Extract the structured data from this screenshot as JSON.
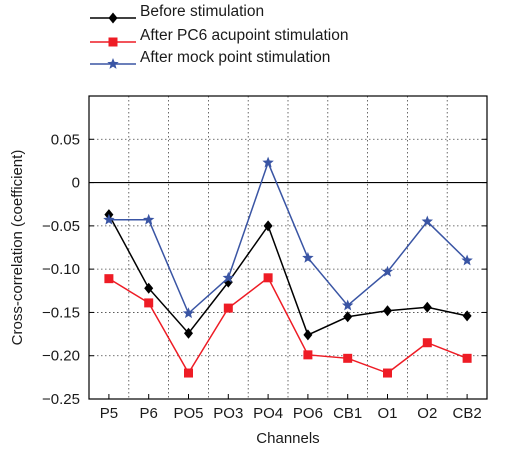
{
  "chart_data": {
    "type": "line",
    "title": "",
    "xlabel": "Channels",
    "ylabel": "Cross-correlation (coefficient)",
    "categories": [
      "P5",
      "P6",
      "PO5",
      "PO3",
      "PO4",
      "PO6",
      "CB1",
      "O1",
      "O2",
      "CB2"
    ],
    "ylim": [
      -0.25,
      0.1
    ],
    "yticks": [
      -0.25,
      -0.2,
      -0.15,
      -0.1,
      -0.05,
      0,
      0.05
    ],
    "ytick_labels": [
      "−0.25",
      "−0.20",
      "−0.15",
      "−0.10",
      "−0.05",
      "0",
      "0.05"
    ],
    "grid": true,
    "zero_line": true,
    "legend_position": "top, above plot",
    "series": [
      {
        "name": "Before stimulation",
        "color": "#000000",
        "marker": "diamond",
        "values": [
          -0.037,
          -0.122,
          -0.174,
          -0.115,
          -0.05,
          -0.176,
          -0.155,
          -0.148,
          -0.144,
          -0.154
        ]
      },
      {
        "name": "After PC6 acupoint stimulation",
        "color": "#ee1c25",
        "marker": "square",
        "values": [
          -0.111,
          -0.139,
          -0.22,
          -0.145,
          -0.11,
          -0.199,
          -0.203,
          -0.22,
          -0.185,
          -0.203
        ]
      },
      {
        "name": "After mock point stimulation",
        "color": "#3a55a4",
        "marker": "star",
        "values": [
          -0.043,
          -0.043,
          -0.151,
          -0.11,
          0.023,
          -0.087,
          -0.142,
          -0.103,
          -0.045,
          -0.09
        ]
      }
    ]
  }
}
